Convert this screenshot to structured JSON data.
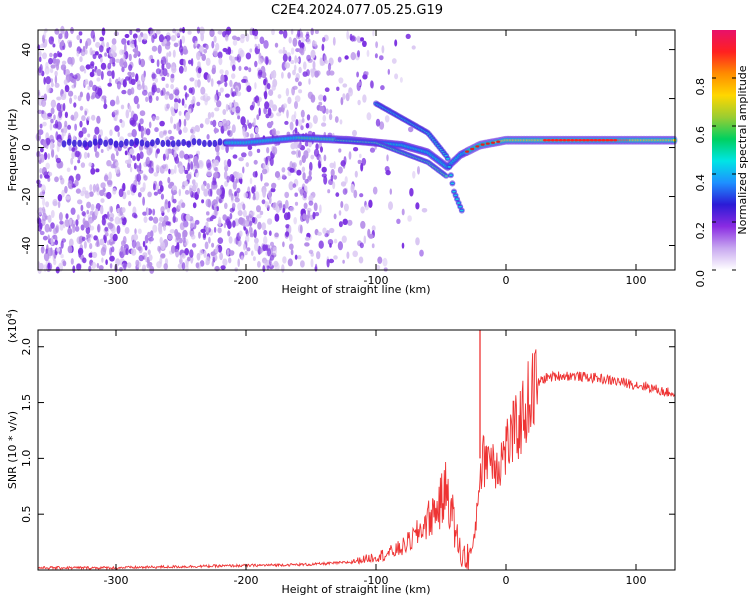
{
  "title": "C2E4.2024.077.05.25.G19",
  "chart_data": [
    {
      "type": "heatmap",
      "xlabel": "Height of straight line (km)",
      "ylabel": "Frequency (Hz)",
      "xlim": [
        -360,
        130
      ],
      "ylim": [
        -50,
        48
      ],
      "xticks": [
        -300,
        -200,
        -100,
        0,
        100
      ],
      "yticks": [
        -40,
        -20,
        0,
        20,
        40
      ],
      "colorbar": {
        "label": "Normalized spectral amplitude",
        "range": [
          0,
          1
        ],
        "ticks": [
          "0.0",
          "0.2",
          "0.4",
          "0.6",
          "0.8"
        ],
        "colormap": [
          "#ffffff",
          "#c8a8f0",
          "#8a2be2",
          "#2b1bd6",
          "#1e90ff",
          "#00e5e5",
          "#00d060",
          "#9acd32",
          "#ffd700",
          "#ff8c00",
          "#ff2020",
          "#e8106a"
        ]
      },
      "features": {
        "noise_region_x": [
          -360,
          -120
        ],
        "main_line": [
          {
            "x": -340,
            "f": 2
          },
          {
            "x": -200,
            "f": 2
          },
          {
            "x": -160,
            "f": 4
          },
          {
            "x": -120,
            "f": 3
          },
          {
            "x": -80,
            "f": 1
          },
          {
            "x": -60,
            "f": -2
          },
          {
            "x": -45,
            "f": -8
          },
          {
            "x": -35,
            "f": -3
          },
          {
            "x": -20,
            "f": 1
          },
          {
            "x": 0,
            "f": 3
          },
          {
            "x": 50,
            "f": 3
          },
          {
            "x": 130,
            "f": 3
          }
        ],
        "upper_branch": [
          {
            "x": -100,
            "f": 18
          },
          {
            "x": -80,
            "f": 12
          },
          {
            "x": -60,
            "f": 6
          },
          {
            "x": -45,
            "f": -4
          },
          {
            "x": -40,
            "f": -18
          },
          {
            "x": -33,
            "f": -27
          }
        ],
        "lower_branch": [
          {
            "x": -130,
            "f": 3
          },
          {
            "x": -100,
            "f": 2
          },
          {
            "x": -80,
            "f": -2
          },
          {
            "x": -60,
            "f": -6
          },
          {
            "x": -45,
            "f": -12
          }
        ]
      }
    },
    {
      "type": "line",
      "xlabel": "Height of straight line (km)",
      "ylabel": "SNR (10 * v/v)",
      "ymultiplier": "(x10^4)",
      "xlim": [
        -360,
        130
      ],
      "ylim": [
        0,
        2.15
      ],
      "xticks": [
        -300,
        -200,
        -100,
        0,
        100
      ],
      "yticks": [
        "0.5",
        "1.0",
        "1.5",
        "2.0"
      ],
      "color": "#ee3333",
      "series": [
        {
          "x": [
            -360,
            -300,
            -250,
            -200,
            -150,
            -120,
            -100,
            -90,
            -80,
            -70,
            -60,
            -50,
            -45,
            -40,
            -35,
            -30,
            -25,
            -22,
            -20,
            -18,
            -15,
            -10,
            -5,
            0,
            5,
            10,
            15,
            20,
            25,
            30,
            40,
            50,
            60,
            70,
            80,
            90,
            100,
            110,
            120,
            130
          ],
          "y": [
            0.02,
            0.02,
            0.03,
            0.04,
            0.05,
            0.07,
            0.12,
            0.15,
            0.2,
            0.3,
            0.45,
            0.6,
            0.75,
            0.4,
            0.15,
            0.1,
            0.2,
            0.6,
            0.9,
            0.95,
            1.05,
            1.0,
            0.95,
            1.1,
            1.2,
            1.3,
            1.45,
            1.6,
            1.68,
            1.72,
            1.74,
            1.74,
            1.73,
            1.72,
            1.7,
            1.68,
            1.66,
            1.64,
            1.6,
            1.58
          ]
        }
      ],
      "spike": {
        "x": -20,
        "y": 2.15
      }
    }
  ]
}
